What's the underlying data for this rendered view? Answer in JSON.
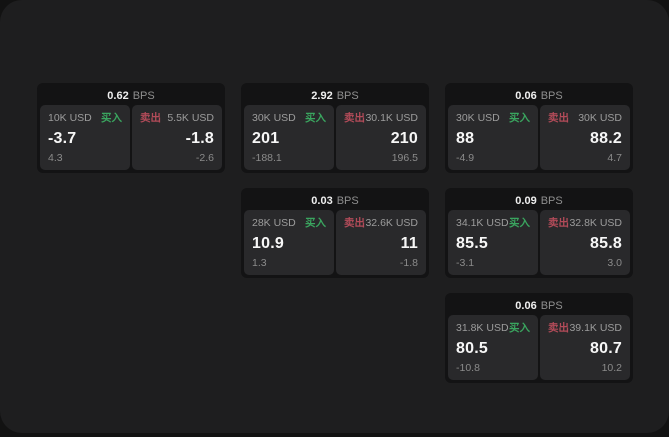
{
  "labels": {
    "buy": "买入",
    "sell": "卖出",
    "bps_unit": "BPS"
  },
  "colors": {
    "body_bg": "#121212",
    "panel_bg": "#1e1e1f",
    "card_bg": "#131314",
    "subcard_bg": "#29292b",
    "buy_green": "#3aa55f",
    "sell_red": "#b24b59",
    "primary_text": "#f7f7f7",
    "secondary_text": "#9c9c9c"
  },
  "cards": [
    {
      "bps": "0.62",
      "buy": {
        "amount": "10K USD",
        "price": "-3.7",
        "delta": "4.3"
      },
      "sell": {
        "amount": "5.5K USD",
        "price": "-1.8",
        "delta": "-2.6"
      }
    },
    {
      "bps": "2.92",
      "buy": {
        "amount": "30K USD",
        "price": "201",
        "delta": "-188.1"
      },
      "sell": {
        "amount": "30.1K USD",
        "price": "210",
        "delta": "196.5"
      }
    },
    {
      "bps": "0.06",
      "buy": {
        "amount": "30K USD",
        "price": "88",
        "delta": "-4.9"
      },
      "sell": {
        "amount": "30K USD",
        "price": "88.2",
        "delta": "4.7"
      }
    },
    {
      "bps": "0.03",
      "buy": {
        "amount": "28K USD",
        "price": "10.9",
        "delta": "1.3"
      },
      "sell": {
        "amount": "32.6K USD",
        "price": "11",
        "delta": "-1.8"
      }
    },
    {
      "bps": "0.09",
      "buy": {
        "amount": "34.1K USD",
        "price": "85.5",
        "delta": "-3.1"
      },
      "sell": {
        "amount": "32.8K USD",
        "price": "85.8",
        "delta": "3.0"
      }
    },
    {
      "bps": "0.06",
      "buy": {
        "amount": "31.8K USD",
        "price": "80.5",
        "delta": "-10.8"
      },
      "sell": {
        "amount": "39.1K USD",
        "price": "80.7",
        "delta": "10.2"
      }
    }
  ]
}
